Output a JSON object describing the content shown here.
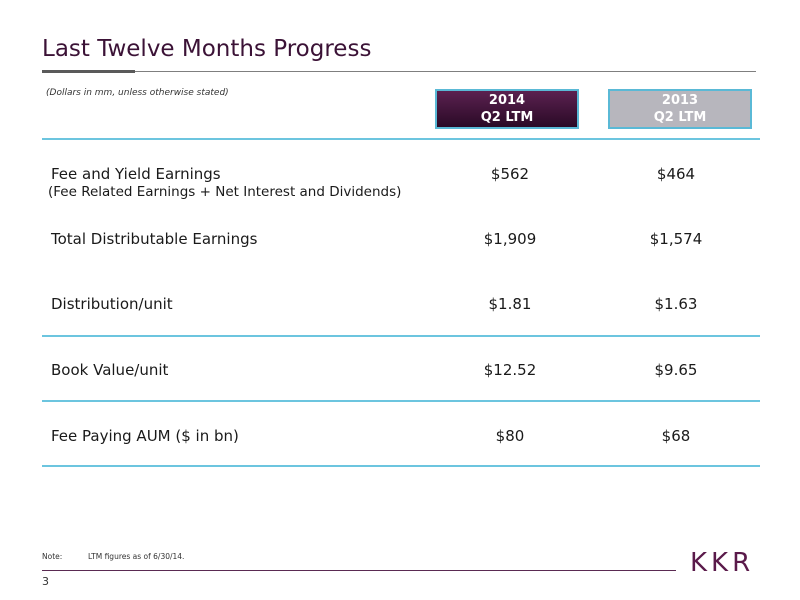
{
  "page": {
    "title": "Last Twelve Months Progress",
    "subnote": "(Dollars in mm, unless otherwise stated)",
    "page_number": "3",
    "note_label": "Note:",
    "note_text": "LTM figures as of 6/30/14.",
    "logo": "KKR"
  },
  "table": {
    "columns": [
      {
        "year": "2014",
        "period": "Q2 LTM"
      },
      {
        "year": "2013",
        "period": "Q2 LTM"
      }
    ],
    "rows": [
      {
        "label": "Fee and Yield Earnings",
        "sublabel": "(Fee Related Earnings + Net Interest and Dividends)",
        "values": [
          "$562",
          "$464"
        ]
      },
      {
        "label": "Total Distributable Earnings",
        "values": [
          "$1,909",
          "$1,574"
        ]
      },
      {
        "label": "Distribution/unit",
        "values": [
          "$1.81",
          "$1.63"
        ]
      },
      {
        "label": "Book Value/unit",
        "values": [
          "$12.52",
          "$9.65"
        ]
      },
      {
        "label": "Fee Paying AUM ($ in bn)",
        "values": [
          "$80",
          "$68"
        ]
      }
    ]
  },
  "colors": {
    "title": "#3b1236",
    "header_2014": "#3e1238",
    "header_2013": "#b7b6bd",
    "rule": "#6cc5df",
    "logo": "#5a1a4a"
  }
}
